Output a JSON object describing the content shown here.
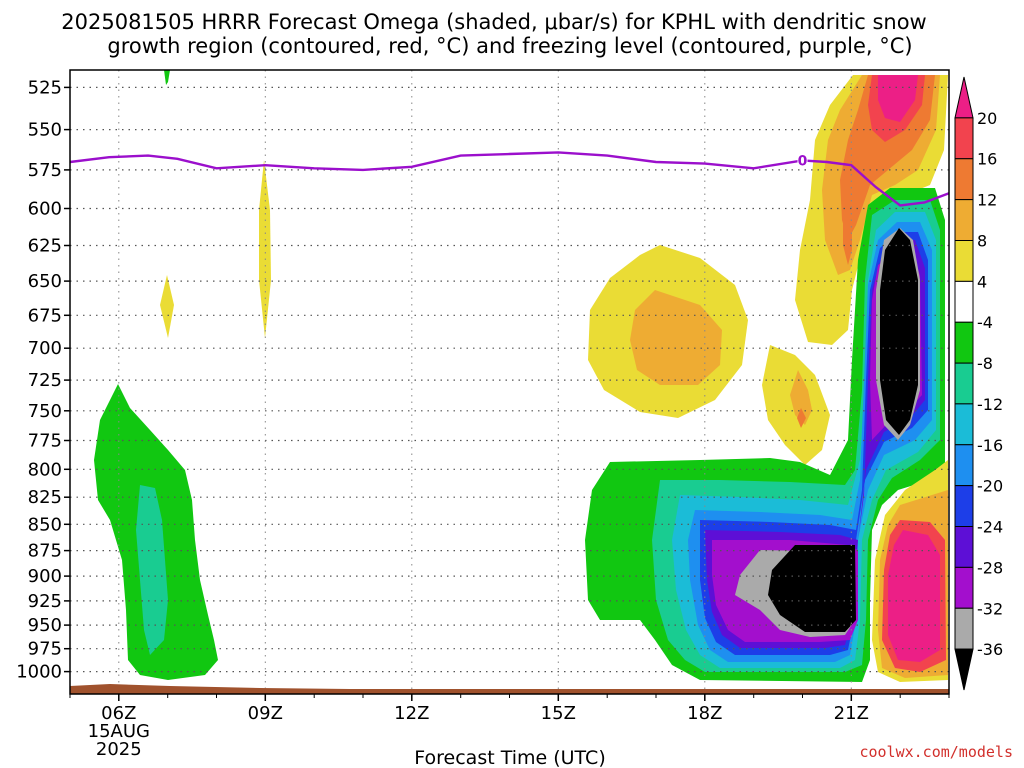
{
  "title_line1": "2025081505 HRRR Forecast Omega (shaded, μbar/s) for KPHL with dendritic snow",
  "title_line2": "growth region (contoured, red, °C) and freezing level (contoured, purple, °C)",
  "x_axis_label": "Forecast Time (UTC)",
  "credit": "coolwx.com/models",
  "chart_data": {
    "type": "heatmap",
    "title": "2025081505 HRRR Forecast Omega (shaded, μbar/s) for KPHL with dendritic snow growth region (contoured, red, °C) and freezing level (contoured, purple, °C)",
    "xlabel": "Forecast Time (UTC)",
    "ylabel": "",
    "x_hours_range": [
      5,
      23
    ],
    "x_ticks": [
      {
        "hour": 6,
        "label": "06Z",
        "extra": [
          "15AUG",
          "2025"
        ]
      },
      {
        "hour": 9,
        "label": "09Z",
        "extra": []
      },
      {
        "hour": 12,
        "label": "12Z",
        "extra": []
      },
      {
        "hour": 15,
        "label": "15Z",
        "extra": []
      },
      {
        "hour": 18,
        "label": "18Z",
        "extra": []
      },
      {
        "hour": 21,
        "label": "21Z",
        "extra": []
      }
    ],
    "y_pressure_range": [
      1025,
      515
    ],
    "y_ticks": [
      525,
      550,
      575,
      600,
      625,
      650,
      675,
      700,
      725,
      750,
      775,
      800,
      825,
      850,
      875,
      900,
      925,
      950,
      975,
      1000
    ],
    "colorbar": {
      "labels": [
        "20",
        "16",
        "12",
        "8",
        "4",
        "-4",
        "-8",
        "-12",
        "-16",
        "-20",
        "-24",
        "-28",
        "-32",
        "-36"
      ],
      "colors": [
        "#ec1f86",
        "#f2434e",
        "#ee7a32",
        "#eeac33",
        "#eadc35",
        "#ffffff",
        "#11c711",
        "#19cc91",
        "#1bbcd7",
        "#1e8ff0",
        "#1d3ee8",
        "#5d0fd6",
        "#a30fcd",
        "#aaaaaa",
        "#000000"
      ]
    },
    "freezing_level_contour": {
      "label": "0",
      "color": "#9b0fcc",
      "hours": [
        5,
        5.8,
        6.6,
        7.2,
        8.0,
        9.0,
        10.0,
        11.0,
        12.0,
        13.0,
        14.0,
        15.0,
        16.0,
        17.0,
        18.0,
        19.0,
        20.0,
        20.5,
        21.0,
        21.5,
        22.0,
        22.5,
        23.0
      ],
      "pressure_mb": [
        570,
        567,
        566,
        568,
        574,
        572,
        574,
        575,
        573,
        566,
        565,
        564,
        566,
        570,
        571,
        574,
        569,
        570,
        572,
        586,
        598,
        596,
        590
      ]
    },
    "omega_features": [
      {
        "description": "rising motion core",
        "value_min_ubar_s": -36,
        "hours": [
          19.5,
          21.0
        ],
        "pressure_mb": [
          870,
          950
        ]
      },
      {
        "description": "rising motion core",
        "value_min_ubar_s": -36,
        "hours": [
          21.4,
          22.0
        ],
        "pressure_mb": [
          610,
          780
        ]
      },
      {
        "description": "sinking motion core",
        "value_max_ubar_s": 20,
        "hours": [
          21.5,
          22.5
        ],
        "pressure_mb": [
          870,
          980
        ]
      },
      {
        "description": "sinking motion core",
        "value_max_ubar_s": 20,
        "hours": [
          21.4,
          22.3
        ],
        "pressure_mb": [
          525,
          560
        ]
      }
    ]
  },
  "colors": {
    "ground": "#a0522d",
    "frame": "#000000"
  }
}
